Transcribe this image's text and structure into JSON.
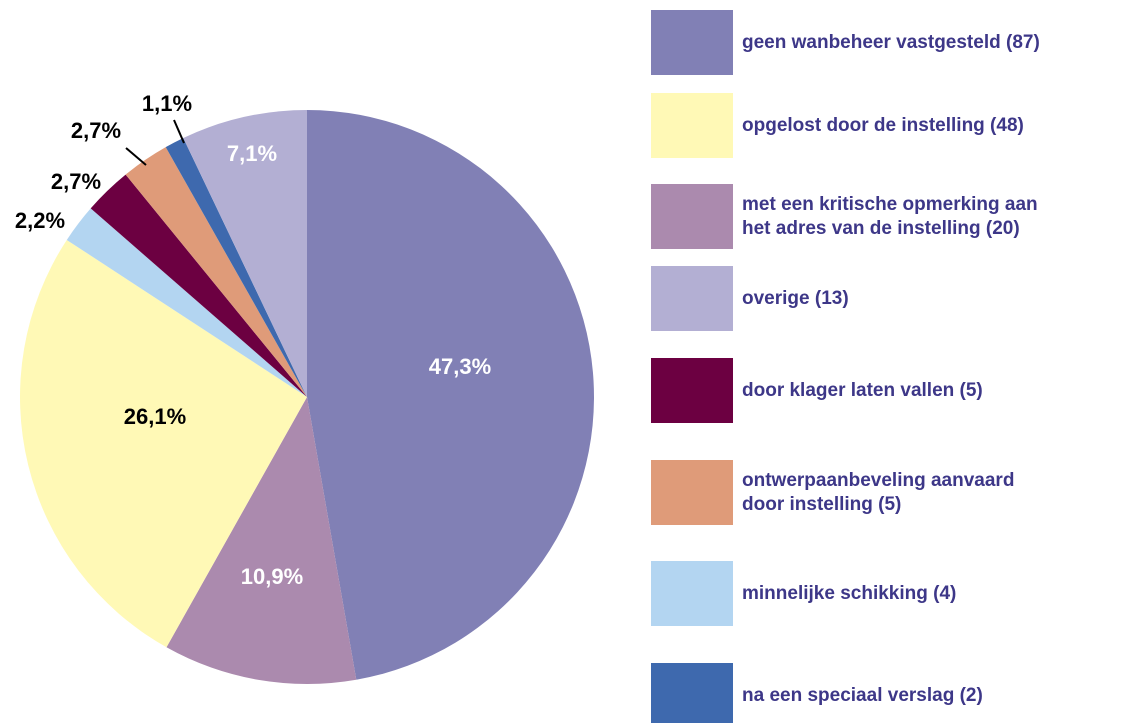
{
  "chart_data": {
    "type": "pie",
    "categories": [
      "geen wanbeheer vastgesteld (87)",
      "opgelost door de instelling (48)",
      "met een kritische opmerking aan\nhet adres van de instelling  (20)",
      "overige (13)",
      "door klager laten vallen (5)",
      "ontwerpaanbeveling aanvaard\ndoor instelling  (5)",
      "minnelijke schikking (4)",
      "na een speciaal verslag  (2)"
    ],
    "values": [
      47.3,
      26.1,
      10.9,
      7.1,
      2.7,
      2.7,
      2.2,
      1.1
    ],
    "value_labels": [
      "47,3%",
      "26,1%",
      "10,9%",
      "7,1%",
      "2,7%",
      "2,7%",
      "2,2%",
      "1,1%"
    ],
    "colors": [
      "#8180b5",
      "#fff9b6",
      "#ab8aae",
      "#b3afd3",
      "#6c0041",
      "#df9b79",
      "#b3d5f1",
      "#3e69ae"
    ]
  }
}
